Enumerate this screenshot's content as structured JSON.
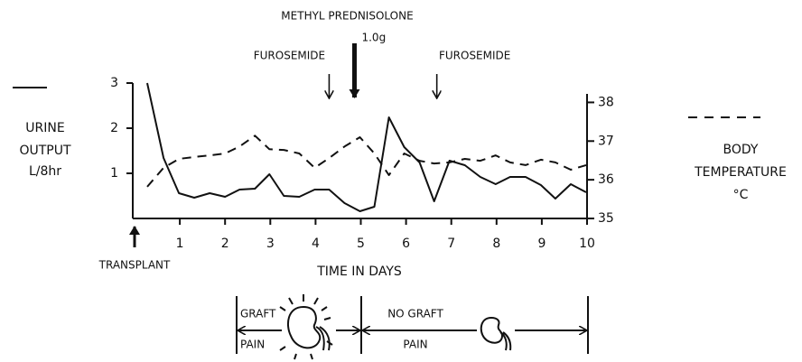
{
  "chart_data": {
    "type": "line",
    "x_label": "TIME IN DAYS",
    "y_label": [
      "URINE",
      "OUTPUT",
      "L/8hr"
    ],
    "y2_label": [
      "BODY",
      "TEMPERATURE",
      "°C"
    ],
    "x": [
      0.28,
      0.64,
      0.98,
      1.32,
      1.66,
      2.0,
      2.32,
      2.66,
      2.98,
      3.3,
      3.64,
      3.98,
      4.3,
      4.64,
      4.98,
      5.3,
      5.62,
      5.96,
      6.3,
      6.62,
      6.96,
      7.3,
      7.64,
      7.98,
      8.3,
      8.64,
      8.98,
      9.3,
      9.64,
      9.98
    ],
    "series": [
      {
        "color": "#111111",
        "dash": false,
        "values": [
          3.0,
          1.34,
          0.56,
          0.46,
          0.56,
          0.48,
          0.64,
          0.66,
          0.98,
          0.5,
          0.48,
          0.64,
          0.64,
          0.34,
          0.16,
          0.26,
          2.24,
          1.58,
          1.24,
          0.38,
          1.28,
          1.18,
          0.92,
          0.76,
          0.92,
          0.92,
          0.74,
          0.44,
          0.76,
          0.58
        ]
      },
      {
        "color": "#111111",
        "dash": true,
        "axis": "y2",
        "values": [
          35.82,
          36.31,
          36.54,
          36.59,
          36.63,
          36.68,
          36.86,
          37.14,
          36.79,
          36.77,
          36.68,
          36.31,
          36.56,
          36.86,
          37.1,
          36.68,
          36.12,
          36.68,
          36.49,
          36.42,
          36.45,
          36.54,
          36.49,
          36.63,
          36.45,
          36.38,
          36.52,
          36.45,
          36.26,
          36.38
        ]
      }
    ],
    "xlim": [
      0,
      10
    ],
    "xticks": [
      1,
      2,
      3,
      4,
      5,
      6,
      7,
      8,
      9,
      10
    ],
    "ylim": [
      0,
      3
    ],
    "yticks": [
      1,
      2,
      3
    ],
    "y2lim": [
      35,
      38.5
    ],
    "y2ticks": [
      35,
      36,
      37,
      38
    ],
    "annotations": [
      {
        "text": "FUROSEMIDE",
        "x": 4.3
      },
      {
        "text": "METHYL PREDNISOLONE",
        "subtext": "1.0g",
        "x": 4.86
      },
      {
        "text": "FUROSEMIDE",
        "x": 6.68
      }
    ],
    "start_marker": {
      "text": "TRANSPLANT",
      "x": 0
    }
  },
  "diagram": {
    "left": [
      "GRAFT",
      "PAIN"
    ],
    "right": [
      "NO GRAFT",
      "PAIN"
    ]
  }
}
